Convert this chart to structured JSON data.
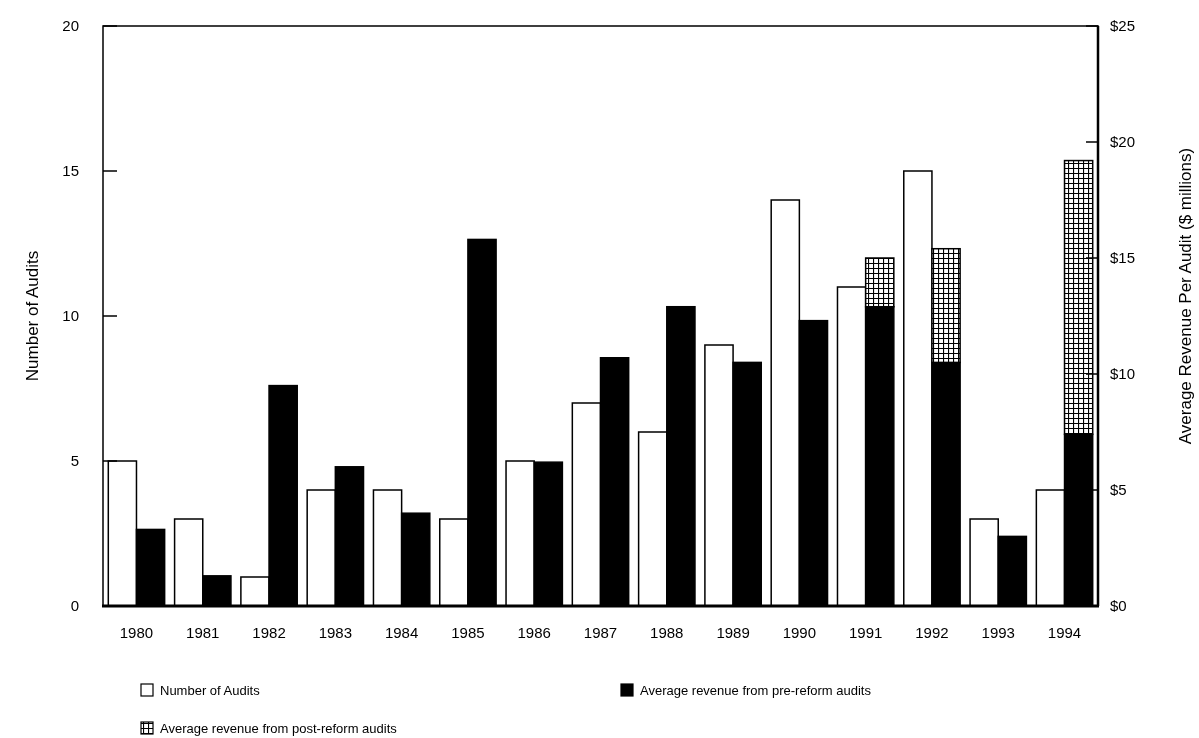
{
  "chart_data": {
    "type": "bar",
    "ylabel": "Number of Audits",
    "y2label": "Average Revenue Per Audit ($ millions)",
    "categories": [
      "1980",
      "1981",
      "1982",
      "1983",
      "1984",
      "1985",
      "1986",
      "1987",
      "1988",
      "1989",
      "1990",
      "1991",
      "1992",
      "1993",
      "1994"
    ],
    "series": [
      {
        "name": "Number of Audits",
        "color": "#ffffff",
        "values": [
          5,
          3,
          1,
          4,
          4,
          3,
          5,
          7,
          6,
          9,
          14,
          11,
          15,
          3,
          4
        ]
      },
      {
        "name": "Average revenue from pre-reform audits",
        "color": "#000000",
        "axis": "y2",
        "values": [
          3.3,
          1.3,
          9.5,
          6.0,
          4.0,
          15.8,
          6.2,
          10.7,
          12.9,
          10.5,
          12.3,
          12.9,
          10.5,
          3.0,
          7.4
        ]
      },
      {
        "name": "Average revenue from post-reform audits",
        "color": "#000000",
        "axis": "y2",
        "values": [
          null,
          null,
          null,
          null,
          null,
          null,
          null,
          null,
          null,
          null,
          null,
          2.1,
          4.9,
          null,
          11.8
        ]
      }
    ],
    "stacked": true,
    "ylim": [
      0,
      20
    ],
    "yticks": [
      0,
      5,
      10,
      15,
      20
    ],
    "y2lim": [
      0,
      25
    ],
    "y2ticks": [
      {
        "value": 0,
        "label": "$0"
      },
      {
        "value": 5,
        "label": "$5"
      },
      {
        "value": 10,
        "label": "$10"
      },
      {
        "value": 15,
        "label": "$15"
      },
      {
        "value": 20,
        "label": "$20"
      },
      {
        "value": 25,
        "label": "$25"
      }
    ],
    "grid": false,
    "legend": "bottom"
  }
}
